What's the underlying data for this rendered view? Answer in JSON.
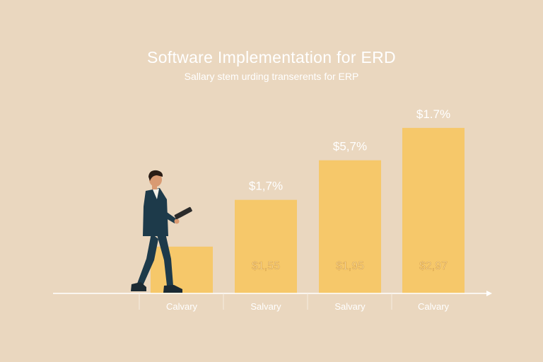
{
  "chart_data": {
    "type": "bar",
    "title": "Software Implementation for ERD",
    "subtitle": "Sallary stem urding transerents for ERP",
    "categories": [
      "Calvary",
      "Salvary",
      "Salvary",
      "Calvary"
    ],
    "values": [
      1.3,
      2.6,
      3.7,
      4.6
    ],
    "value_labels_top": [
      "",
      "$1,7%",
      "$5,7%",
      "$1.7%"
    ],
    "value_labels_inside": [
      "",
      "$1,55",
      "$1,95",
      "$2,97"
    ],
    "xlabel": "",
    "ylabel": "",
    "ylim": [
      0,
      5.6
    ],
    "grid": false,
    "legend": "none",
    "colors": {
      "bar": "#f6c86a",
      "background": "#ead7bf",
      "axis": "#ffffff",
      "text": "#ffffff"
    }
  },
  "illustration": {
    "figure": "businessman-walking-with-tablet-icon"
  }
}
